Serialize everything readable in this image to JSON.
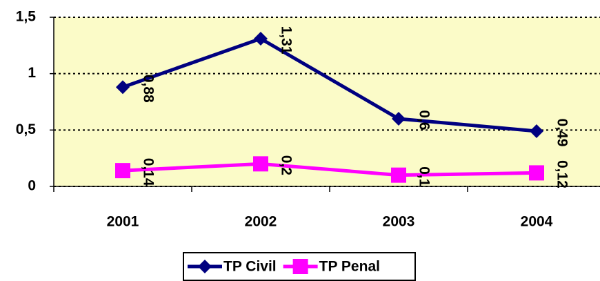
{
  "chart_data": {
    "type": "line",
    "categories": [
      "2001",
      "2002",
      "2003",
      "2004"
    ],
    "series": [
      {
        "name": "TP Civil",
        "color": "#000080",
        "marker": "diamond",
        "values": [
          0.88,
          1.31,
          0.6,
          0.49
        ],
        "value_labels": [
          "0,88",
          "1,31",
          "0,6",
          "0,49"
        ]
      },
      {
        "name": "TP Penal",
        "color": "#ff00ff",
        "marker": "square",
        "values": [
          0.14,
          0.2,
          0.1,
          0.12
        ],
        "value_labels": [
          "0,14",
          "0,2",
          "0,1",
          "0,12"
        ]
      }
    ],
    "ylim": [
      0,
      1.5
    ],
    "yticks": [
      0,
      {
        "value": 0.5,
        "label": "0,5"
      },
      1,
      {
        "value": 1.5,
        "label": "1,5"
      }
    ],
    "grid": true,
    "legend": "bottom"
  }
}
